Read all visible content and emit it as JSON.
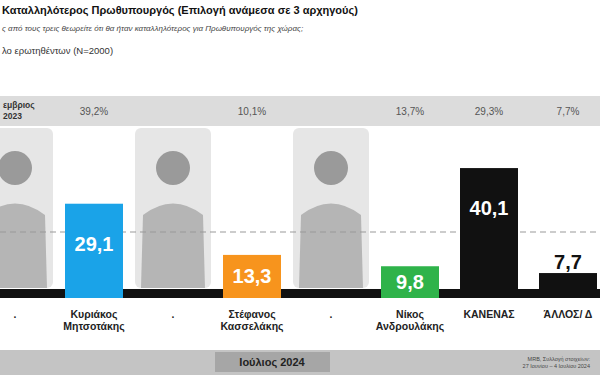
{
  "chart_data": {
    "type": "bar",
    "title": "Καταλληλότερος Πρωθυπουργός (Επιλογή ανάμεσα σε 3 αρχηγούς)",
    "subtitle": "ς από τους τρεις θεωρείτε ότι θα ήταν καταλληλότερος για Πρωθυπουργός της χώρας;",
    "base": "λο ερωτηθέντων (N=2000)",
    "source": [
      "MRB, Συλλογή στοιχείων:",
      "27 Ιουνίου – 4 Ιουλίου 2024"
    ],
    "categories": [
      ".",
      "Κυριάκος Μητσοτάκης",
      ".",
      "Στέφανος Κασσελάκης",
      ".",
      "Νίκος Ανδρουλάκης",
      "ΚΑΝΕΝΑΣ",
      "ΆΛΛΟΣ/ Δ"
    ],
    "series": [
      {
        "name": "Ιούλιος 2024",
        "type": "bar",
        "values": [
          null,
          29.1,
          null,
          13.3,
          null,
          9.8,
          40.1,
          7.7
        ],
        "value_labels": [
          null,
          "29,1",
          null,
          "13,3",
          null,
          "9,8",
          "40,1",
          "7,7"
        ],
        "colors": [
          null,
          "#1aa3e8",
          null,
          "#f7941d",
          null,
          "#2fb34a",
          "#111111",
          "#111111"
        ]
      },
      {
        "name": "εμβριος 2023",
        "type": "text",
        "values": [
          null,
          39.2,
          null,
          10.1,
          null,
          13.7,
          29.3,
          7.7
        ],
        "value_labels": [
          null,
          "39,2%",
          null,
          "10,1%",
          null,
          "13,7%",
          "29,3%",
          "7,7%"
        ]
      }
    ],
    "ylim": [
      0,
      50
    ],
    "yticks": [],
    "grid": false,
    "data_labels": true,
    "tick_labels": "x"
  }
}
